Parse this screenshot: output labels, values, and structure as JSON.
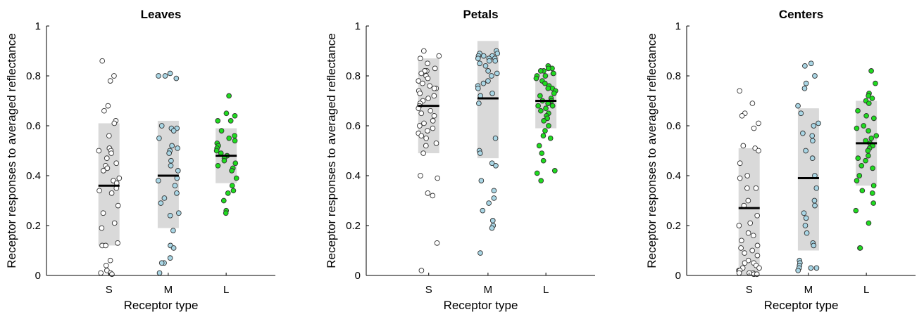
{
  "colors": {
    "S": "#ffffff",
    "M": "#a9d6e5",
    "L": "#1fdc1f",
    "box": "#d9d9d9",
    "median": "#000000"
  },
  "chart_data": [
    {
      "type": "scatter",
      "title": "Leaves",
      "xlabel": "Receptor type",
      "ylabel": "Receptor responses to averaged reflectance",
      "ylim": [
        0,
        1
      ],
      "yticks": [
        "0",
        "0.2",
        "0.4",
        "0.6",
        "0.8",
        "1"
      ],
      "categories": [
        "S",
        "M",
        "L"
      ],
      "series": [
        {
          "category": "S",
          "box": [
            0.12,
            0.61
          ],
          "median": 0.36,
          "points": [
            0.86,
            0.8,
            0.78,
            0.68,
            0.66,
            0.62,
            0.61,
            0.56,
            0.51,
            0.51,
            0.5,
            0.5,
            0.49,
            0.47,
            0.45,
            0.44,
            0.43,
            0.42,
            0.39,
            0.38,
            0.37,
            0.35,
            0.34,
            0.33,
            0.28,
            0.25,
            0.21,
            0.19,
            0.13,
            0.12,
            0.12,
            0.06,
            0.04,
            0.02,
            0.01,
            0.01,
            0.005
          ]
        },
        {
          "category": "M",
          "box": [
            0.19,
            0.62
          ],
          "median": 0.4,
          "points": [
            0.81,
            0.8,
            0.8,
            0.79,
            0.6,
            0.59,
            0.59,
            0.58,
            0.55,
            0.52,
            0.51,
            0.5,
            0.49,
            0.46,
            0.44,
            0.42,
            0.39,
            0.38,
            0.36,
            0.33,
            0.31,
            0.29,
            0.25,
            0.24,
            0.18,
            0.12,
            0.11,
            0.07,
            0.05,
            0.05,
            0.01
          ]
        },
        {
          "category": "L",
          "box": [
            0.37,
            0.59
          ],
          "median": 0.48,
          "points": [
            0.72,
            0.65,
            0.64,
            0.62,
            0.62,
            0.58,
            0.56,
            0.55,
            0.54,
            0.53,
            0.52,
            0.51,
            0.5,
            0.49,
            0.48,
            0.48,
            0.47,
            0.46,
            0.45,
            0.44,
            0.43,
            0.42,
            0.39,
            0.36,
            0.34,
            0.33,
            0.3,
            0.26,
            0.25
          ]
        }
      ]
    },
    {
      "type": "scatter",
      "title": "Petals",
      "xlabel": "Receptor type",
      "ylabel": "Receptor responses to averaged reflectance",
      "ylim": [
        0,
        1
      ],
      "yticks": [
        "0",
        "0.2",
        "0.4",
        "0.6",
        "0.8",
        "1"
      ],
      "categories": [
        "S",
        "M",
        "L"
      ],
      "series": [
        {
          "category": "S",
          "box": [
            0.49,
            0.87
          ],
          "median": 0.68,
          "points": [
            0.9,
            0.88,
            0.87,
            0.85,
            0.83,
            0.82,
            0.82,
            0.81,
            0.8,
            0.79,
            0.78,
            0.77,
            0.76,
            0.75,
            0.75,
            0.74,
            0.73,
            0.72,
            0.71,
            0.7,
            0.69,
            0.68,
            0.67,
            0.66,
            0.65,
            0.64,
            0.62,
            0.61,
            0.6,
            0.59,
            0.58,
            0.57,
            0.56,
            0.55,
            0.53,
            0.52,
            0.49,
            0.4,
            0.39,
            0.33,
            0.32,
            0.13,
            0.02
          ]
        },
        {
          "category": "M",
          "box": [
            0.47,
            0.94
          ],
          "median": 0.71,
          "points": [
            0.9,
            0.89,
            0.89,
            0.88,
            0.88,
            0.88,
            0.87,
            0.87,
            0.87,
            0.86,
            0.86,
            0.85,
            0.84,
            0.82,
            0.81,
            0.8,
            0.78,
            0.77,
            0.76,
            0.75,
            0.73,
            0.72,
            0.69,
            0.55,
            0.5,
            0.49,
            0.45,
            0.44,
            0.38,
            0.34,
            0.31,
            0.29,
            0.26,
            0.22,
            0.2,
            0.19,
            0.09
          ]
        },
        {
          "category": "L",
          "box": [
            0.59,
            0.81
          ],
          "median": 0.7,
          "points": [
            0.84,
            0.83,
            0.83,
            0.82,
            0.82,
            0.81,
            0.81,
            0.8,
            0.8,
            0.79,
            0.78,
            0.77,
            0.76,
            0.75,
            0.75,
            0.74,
            0.73,
            0.72,
            0.71,
            0.7,
            0.7,
            0.69,
            0.69,
            0.68,
            0.68,
            0.67,
            0.66,
            0.65,
            0.64,
            0.63,
            0.62,
            0.6,
            0.58,
            0.56,
            0.55,
            0.52,
            0.49,
            0.46,
            0.42,
            0.41,
            0.38
          ]
        }
      ]
    },
    {
      "type": "scatter",
      "title": "Centers",
      "xlabel": "Receptor type",
      "ylabel": "Receptor responses to averaged reflectance",
      "ylim": [
        0,
        1
      ],
      "yticks": [
        "0",
        "0.2",
        "0.4",
        "0.6",
        "0.8",
        "1"
      ],
      "categories": [
        "S",
        "M",
        "L"
      ],
      "series": [
        {
          "category": "S",
          "box": [
            0.0,
            0.51
          ],
          "median": 0.27,
          "points": [
            0.74,
            0.69,
            0.65,
            0.64,
            0.61,
            0.59,
            0.52,
            0.51,
            0.5,
            0.45,
            0.4,
            0.39,
            0.35,
            0.35,
            0.3,
            0.28,
            0.24,
            0.21,
            0.2,
            0.17,
            0.16,
            0.14,
            0.12,
            0.11,
            0.1,
            0.09,
            0.08,
            0.06,
            0.05,
            0.05,
            0.04,
            0.03,
            0.03,
            0.02,
            0.02,
            0.01,
            0.01,
            0.01,
            0.005,
            0.005
          ]
        },
        {
          "category": "M",
          "box": [
            0.1,
            0.67
          ],
          "median": 0.39,
          "points": [
            0.85,
            0.84,
            0.8,
            0.77,
            0.75,
            0.68,
            0.65,
            0.61,
            0.6,
            0.57,
            0.56,
            0.54,
            0.5,
            0.47,
            0.4,
            0.35,
            0.3,
            0.28,
            0.25,
            0.23,
            0.2,
            0.17,
            0.13,
            0.12,
            0.06,
            0.05,
            0.04,
            0.03,
            0.03,
            0.03,
            0.02
          ]
        },
        {
          "category": "L",
          "box": [
            0.36,
            0.7
          ],
          "median": 0.53,
          "points": [
            0.82,
            0.77,
            0.73,
            0.72,
            0.71,
            0.7,
            0.69,
            0.66,
            0.64,
            0.63,
            0.6,
            0.59,
            0.58,
            0.56,
            0.55,
            0.54,
            0.53,
            0.52,
            0.51,
            0.5,
            0.48,
            0.47,
            0.46,
            0.44,
            0.43,
            0.4,
            0.38,
            0.36,
            0.34,
            0.33,
            0.29,
            0.26,
            0.21,
            0.11,
            0.11
          ]
        }
      ]
    }
  ]
}
